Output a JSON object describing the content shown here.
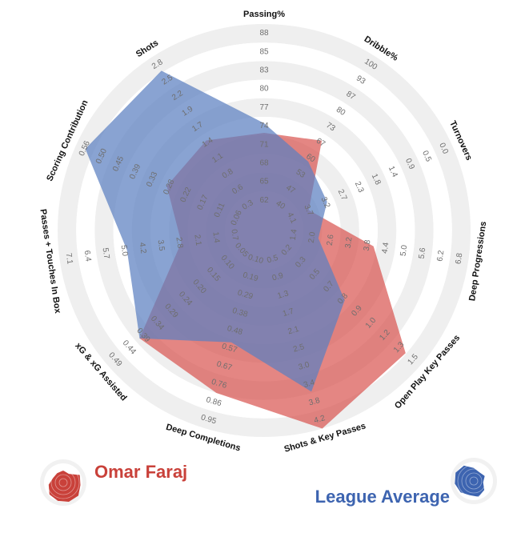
{
  "chart_data": {
    "type": "radar",
    "axes": [
      {
        "name": "Passing%",
        "ticks": [
          "62",
          "65",
          "68",
          "71",
          "74",
          "77",
          "80",
          "83",
          "85",
          "88"
        ],
        "min": 59,
        "max": 88
      },
      {
        "name": "Dribble%",
        "ticks": [
          "40",
          "47",
          "53",
          "60",
          "67",
          "73",
          "80",
          "87",
          "93",
          "100"
        ],
        "min": 33,
        "max": 100
      },
      {
        "name": "Turnovers",
        "ticks": [
          "4.1",
          "3.7",
          "3.2",
          "2.7",
          "2.3",
          "1.8",
          "1.4",
          "0.9",
          "0.5",
          "0.0"
        ],
        "min": 4.6,
        "max": 0.0
      },
      {
        "name": "Deep Progressions",
        "ticks": [
          "1.4",
          "2.0",
          "2.6",
          "3.2",
          "3.8",
          "4.4",
          "5.0",
          "5.6",
          "6.2",
          "6.8"
        ],
        "min": 0.8,
        "max": 6.8
      },
      {
        "name": "Open Play Key Passes",
        "ticks": [
          "0.2",
          "0.3",
          "0.5",
          "0.7",
          "0.8",
          "0.9",
          "1.0",
          "1.2",
          "1.3",
          "1.5"
        ],
        "min": 0.05,
        "max": 1.5
      },
      {
        "name": "Shots & Key Passes",
        "ticks": [
          "0.5",
          "0.9",
          "1.3",
          "1.7",
          "2.1",
          "2.5",
          "3.0",
          "3.4",
          "3.8",
          "4.2"
        ],
        "min": 0.1,
        "max": 4.2
      },
      {
        "name": "Deep Completions",
        "ticks": [
          "0.10",
          "0.19",
          "0.29",
          "0.38",
          "0.48",
          "0.57",
          "0.67",
          "0.76",
          "0.86",
          "0.95"
        ],
        "min": 0.0,
        "max": 0.95
      },
      {
        "name": "xG & xG Assisted",
        "ticks": [
          "0.05",
          "0.10",
          "0.15",
          "0.20",
          "0.24",
          "0.29",
          "0.34",
          "0.39",
          "0.44",
          "0.49"
        ],
        "min": 0.0,
        "max": 0.49
      },
      {
        "name": "Passes + Touches In Box",
        "ticks": [
          "0.7",
          "1.4",
          "2.1",
          "2.8",
          "3.5",
          "4.2",
          "5.0",
          "5.7",
          "6.4",
          "7.1"
        ],
        "min": 0.0,
        "max": 7.1
      },
      {
        "name": "Scoring Contribution",
        "ticks": [
          "0.06",
          "0.11",
          "0.17",
          "0.22",
          "0.28",
          "0.33",
          "0.39",
          "0.45",
          "0.50",
          "0.56"
        ],
        "min": 0.0,
        "max": 0.56
      },
      {
        "name": "Shots",
        "ticks": [
          "0.3",
          "0.6",
          "0.8",
          "1.1",
          "1.4",
          "1.7",
          "1.9",
          "2.2",
          "2.5",
          "2.8"
        ],
        "min": 0.0,
        "max": 2.8
      }
    ],
    "series": [
      {
        "name": "Omar Faraj",
        "color": "#d9534f",
        "values": [
          71,
          64,
          3.9,
          3.7,
          1.35,
          4.2,
          0.76,
          0.38,
          2.4,
          0.26,
          1.3
        ]
      },
      {
        "name": "League Average",
        "color": "#5b7fc0",
        "values": [
          72.5,
          55,
          3.4,
          1.9,
          0.72,
          3.35,
          0.49,
          0.38,
          4.5,
          0.53,
          2.55
        ]
      }
    ],
    "grid": true,
    "legend_position": "bottom"
  },
  "legend": {
    "player": {
      "name": "Omar Faraj",
      "color": "#c9413a",
      "icon": "red-wedge-badge-icon"
    },
    "average": {
      "name": "League Average",
      "color": "#3d64b0",
      "icon": "blue-wedge-badge-icon"
    }
  }
}
